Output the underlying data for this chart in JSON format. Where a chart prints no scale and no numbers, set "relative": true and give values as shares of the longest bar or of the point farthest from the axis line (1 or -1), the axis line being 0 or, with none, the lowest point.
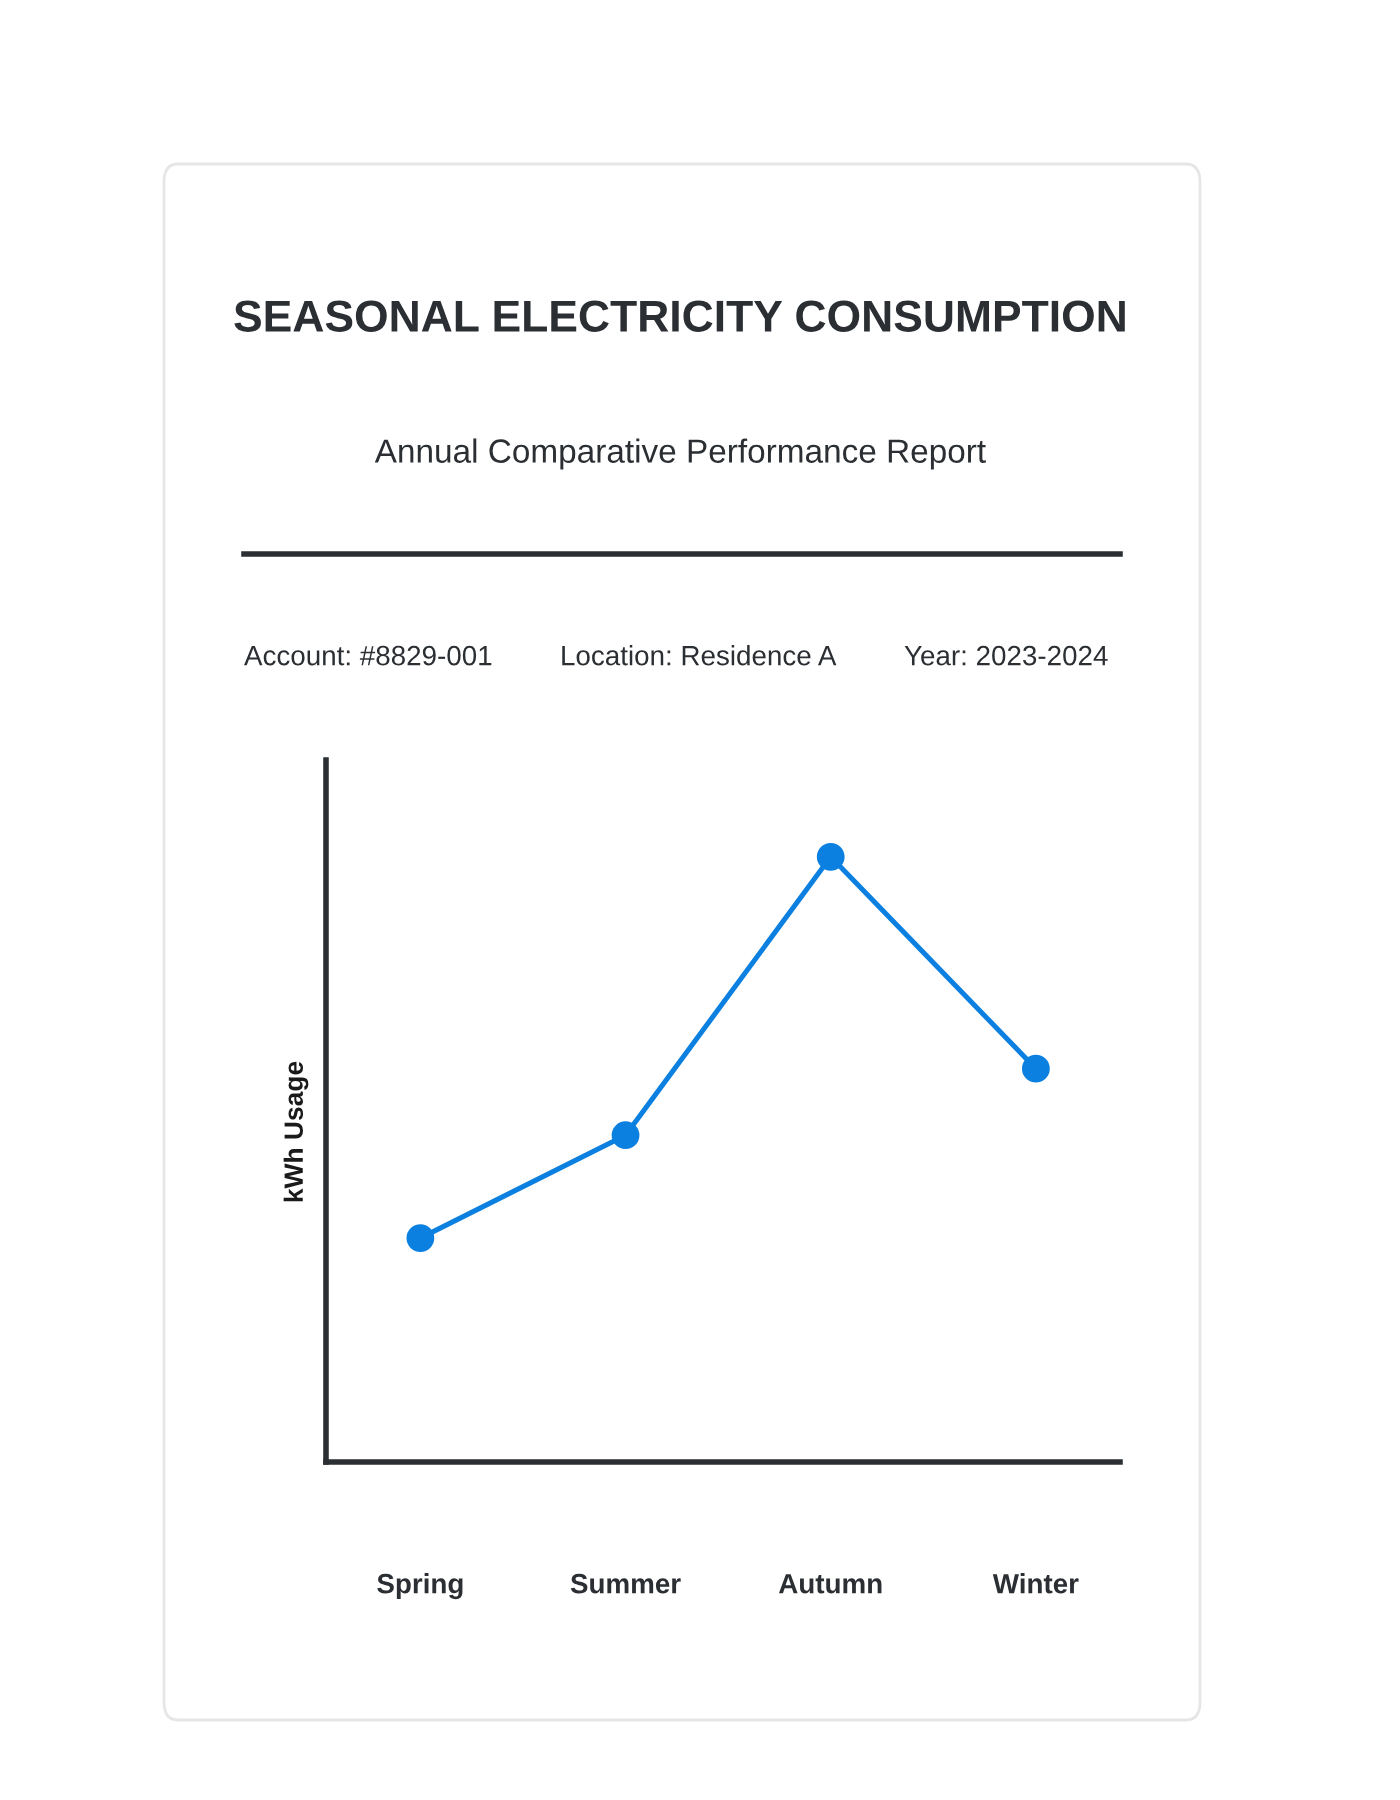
{
  "chart_data": {
    "type": "line",
    "title": "SEASONAL ELECTRICITY CONSUMPTION",
    "subtitle": "Annual Comparative Performance Report",
    "annotations": [
      "Account: #8829-001",
      "Location: Residence A",
      "Year: 2023-2024"
    ],
    "ylabel": "kWh Usage",
    "relative": true,
    "categories": [
      "Spring",
      "Summer",
      "Autumn",
      "Winter"
    ],
    "series": [
      {
        "color": "#0b80e0",
        "values": [
          0.37,
          0.54,
          1,
          0.65
        ]
      }
    ],
    "marker": "circle",
    "line_style": "solid"
  }
}
